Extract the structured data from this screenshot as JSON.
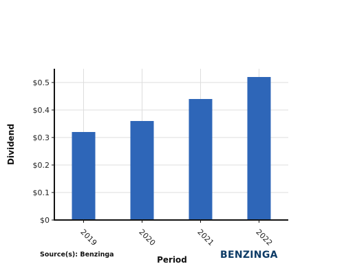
{
  "chart_data": {
    "type": "bar",
    "title": "",
    "xlabel": "Period",
    "ylabel": "Dividend",
    "categories": [
      "2019",
      "2020",
      "2021",
      "2022"
    ],
    "values": [
      0.32,
      0.36,
      0.44,
      0.52
    ],
    "ylim": [
      0,
      0.55
    ],
    "yticks": [
      0,
      0.1,
      0.2,
      0.3,
      0.4,
      0.5
    ],
    "ytick_labels": [
      "$0",
      "$0.1",
      "$0.2",
      "$0.3",
      "$0.4",
      "$0.5"
    ],
    "grid": true,
    "bar_color": "#2e66b8",
    "source": "Source(s): Benzinga",
    "brand": "BENZINGA"
  }
}
